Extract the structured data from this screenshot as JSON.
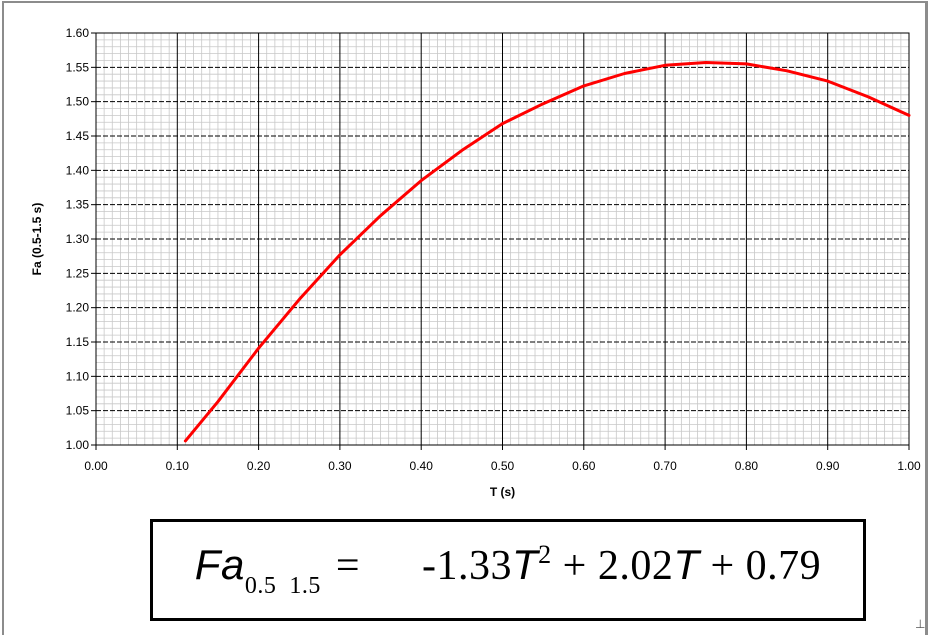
{
  "chart_data": {
    "type": "line",
    "title": "",
    "xlabel": "T (s)",
    "ylabel": "Fa (0.5-1.5 s)",
    "xlim": [
      0.0,
      1.0
    ],
    "ylim": [
      1.0,
      1.6
    ],
    "x_ticks": [
      "0.00",
      "0.10",
      "0.20",
      "0.30",
      "0.40",
      "0.50",
      "0.60",
      "0.70",
      "0.80",
      "0.90",
      "1.00"
    ],
    "y_ticks": [
      "1.00",
      "1.05",
      "1.10",
      "1.15",
      "1.20",
      "1.25",
      "1.30",
      "1.35",
      "1.40",
      "1.45",
      "1.50",
      "1.55",
      "1.60"
    ],
    "grid": true,
    "legend": "none",
    "series": [
      {
        "color": "#ff0000",
        "x": [
          0.11,
          0.15,
          0.2,
          0.25,
          0.3,
          0.35,
          0.4,
          0.45,
          0.5,
          0.55,
          0.6,
          0.65,
          0.7,
          0.75,
          0.8,
          0.85,
          0.9,
          0.95,
          1.0
        ],
        "y": [
          1.006,
          1.063,
          1.141,
          1.212,
          1.277,
          1.334,
          1.385,
          1.429,
          1.468,
          1.497,
          1.523,
          1.541,
          1.553,
          1.557,
          1.555,
          1.545,
          1.53,
          1.507,
          1.48
        ]
      }
    ]
  },
  "formula": {
    "lhs_var": "Fa",
    "lhs_sub": "0.5  1.5",
    "equals": "=",
    "term1": "-1.33",
    "term1_var": "T",
    "term1_exp": "2",
    "term2": "+ 2.02",
    "term2_var": "T",
    "term3": "+ 0.79"
  },
  "corner_mark": "⊥"
}
